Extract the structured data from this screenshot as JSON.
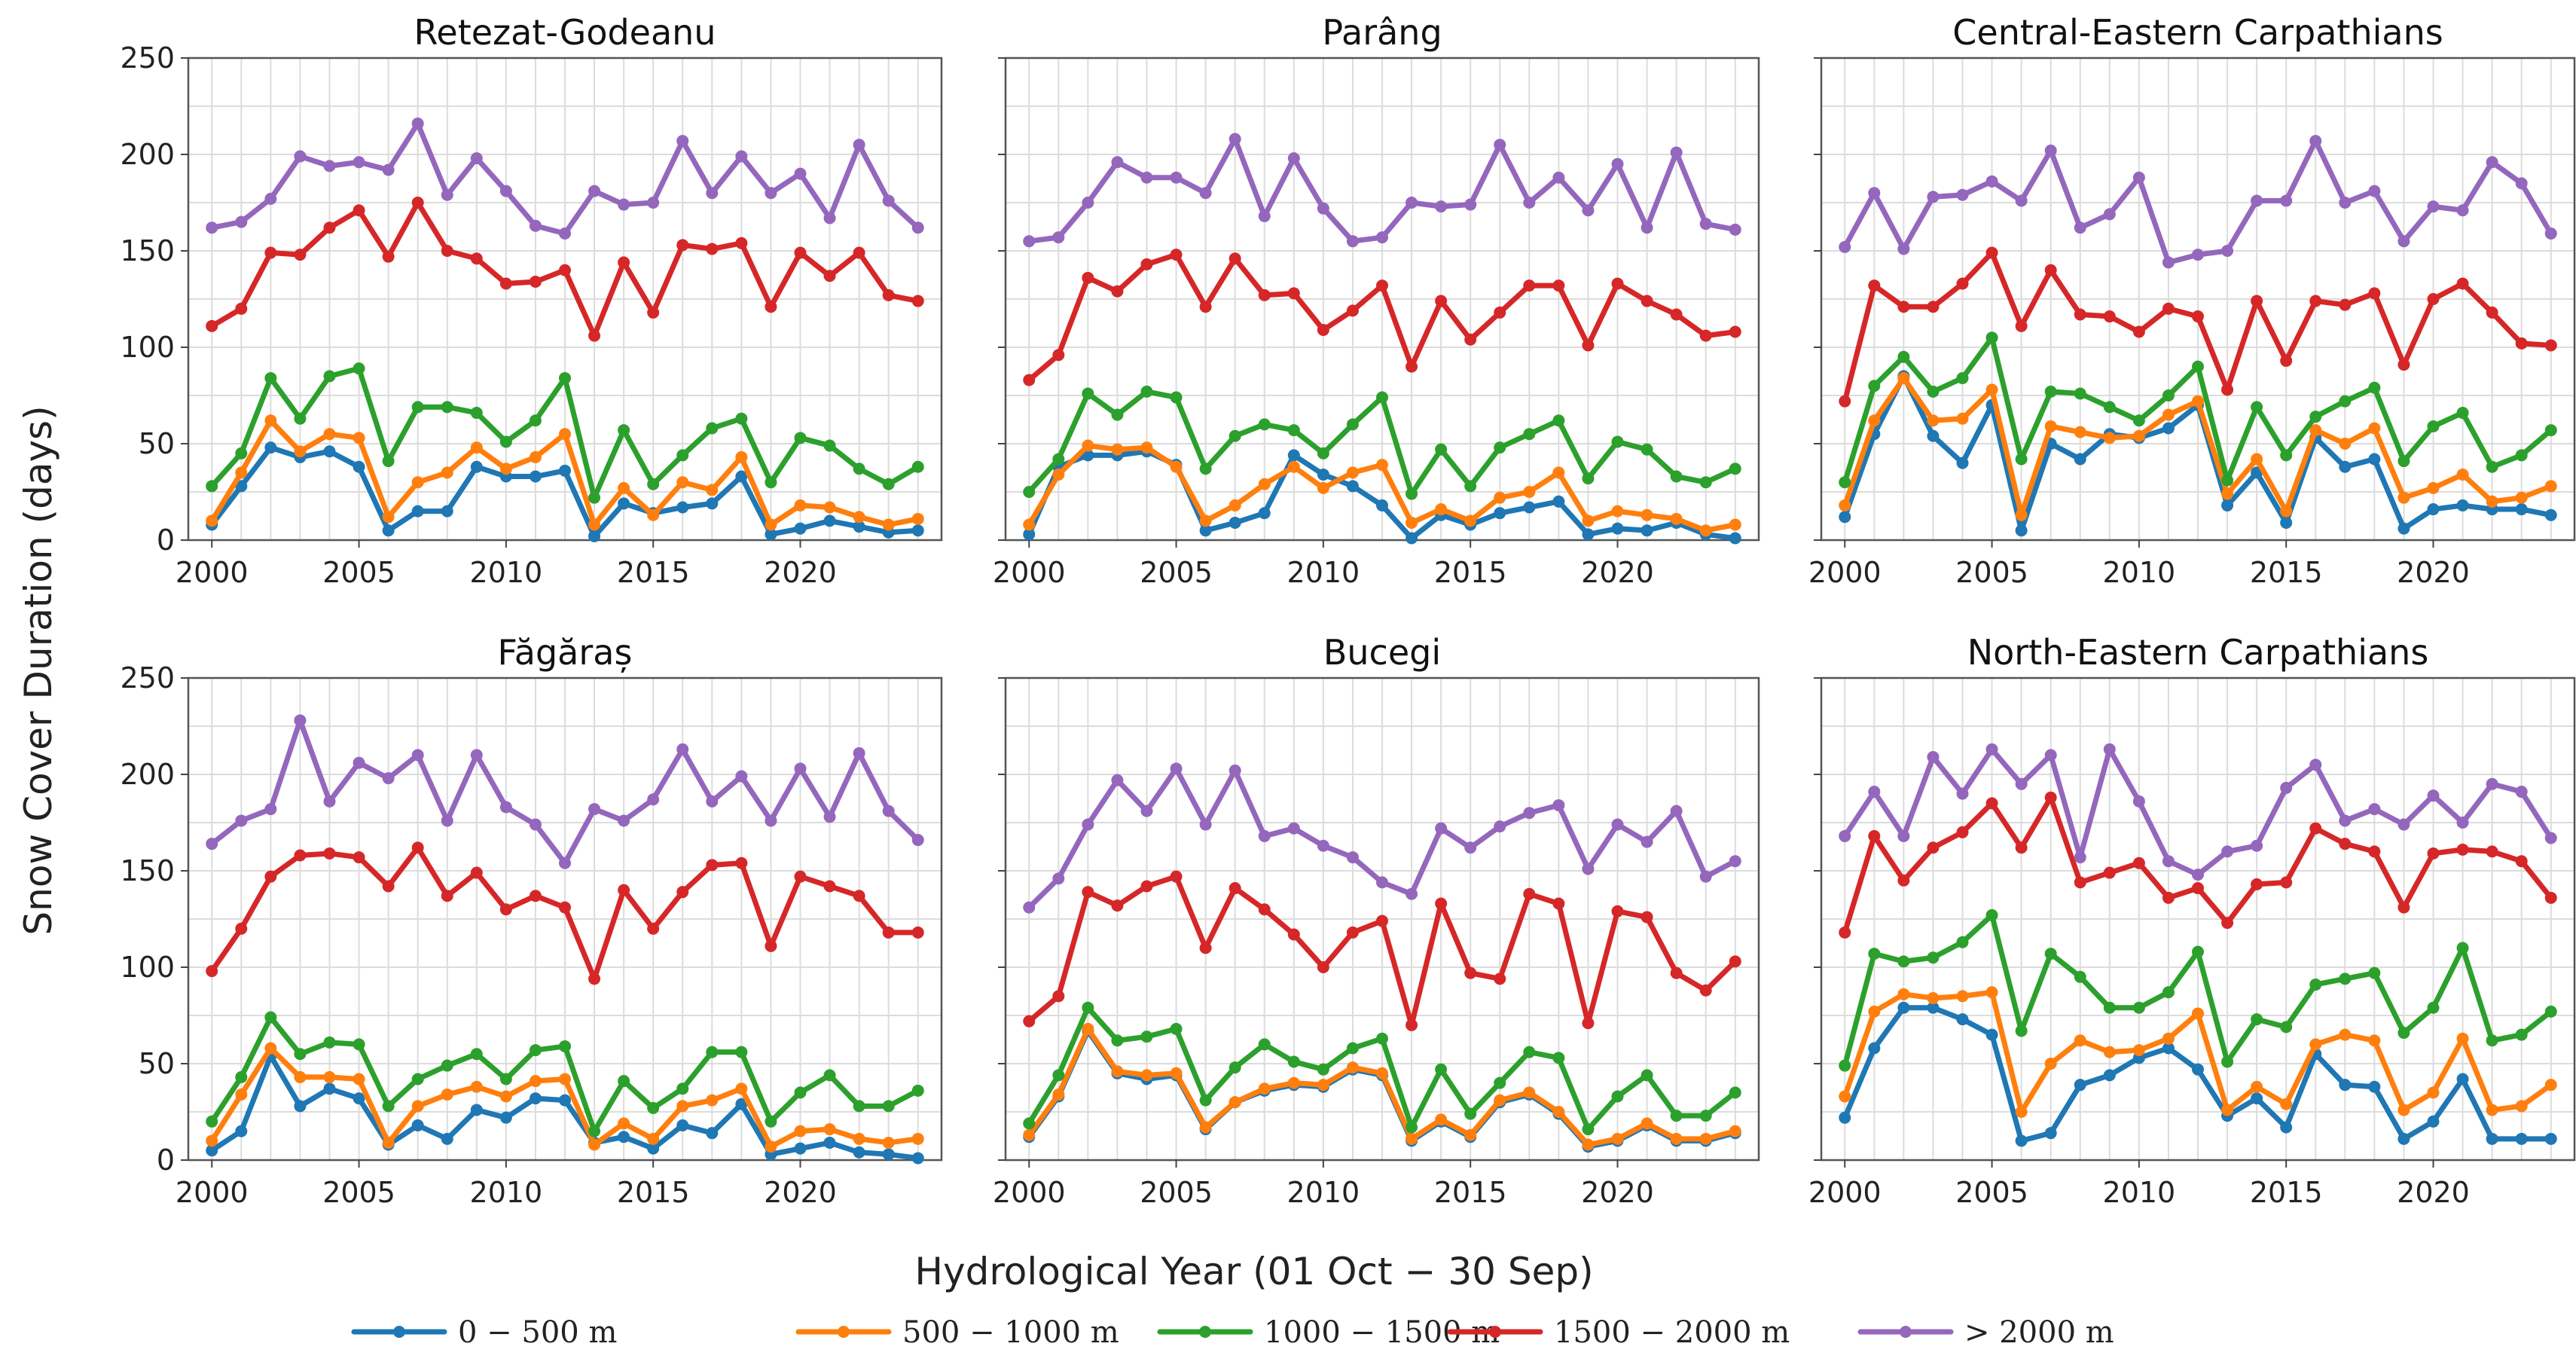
{
  "chart_data": {
    "type": "line",
    "ylabel": "Snow Cover Duration (days)",
    "xlabel": "Hydrological Year (01 Oct − 30 Sep)",
    "ylim": [
      0,
      250
    ],
    "xlim": [
      1999.2,
      2024.8
    ],
    "yticks": [
      0,
      50,
      100,
      150,
      200,
      250
    ],
    "xticks": [
      2000,
      2005,
      2010,
      2015,
      2020
    ],
    "grid": true,
    "legend_position": "bottom",
    "x": [
      2000,
      2001,
      2002,
      2003,
      2004,
      2005,
      2006,
      2007,
      2008,
      2009,
      2010,
      2011,
      2012,
      2013,
      2014,
      2015,
      2016,
      2017,
      2018,
      2019,
      2020,
      2021,
      2022,
      2023,
      2024
    ],
    "series_meta": [
      {
        "name": "0 − 500 m",
        "color": "#1f77b4"
      },
      {
        "name": "500 − 1000 m",
        "color": "#ff7f0e"
      },
      {
        "name": "1000 − 1500 m",
        "color": "#2ca02c"
      },
      {
        "name": "1500 − 2000 m",
        "color": "#d62728"
      },
      {
        "name": "> 2000 m",
        "color": "#9467bd"
      }
    ],
    "panels": [
      {
        "title": "Retezat-Godeanu",
        "series": [
          {
            "name": "0 − 500 m",
            "values": [
              8,
              28,
              48,
              43,
              46,
              38,
              5,
              15,
              15,
              38,
              33,
              33,
              36,
              2,
              19,
              14,
              17,
              19,
              33,
              3,
              6,
              10,
              7,
              4,
              5
            ]
          },
          {
            "name": "500 − 1000 m",
            "values": [
              10,
              35,
              62,
              46,
              55,
              53,
              12,
              30,
              35,
              48,
              37,
              43,
              55,
              8,
              27,
              13,
              30,
              26,
              43,
              8,
              18,
              17,
              12,
              8,
              11
            ]
          },
          {
            "name": "1000 − 1500 m",
            "values": [
              28,
              45,
              84,
              63,
              85,
              89,
              41,
              69,
              69,
              66,
              51,
              62,
              84,
              22,
              57,
              29,
              44,
              58,
              63,
              30,
              53,
              49,
              37,
              29,
              38
            ]
          },
          {
            "name": "1500 − 2000 m",
            "values": [
              111,
              120,
              149,
              148,
              162,
              171,
              147,
              175,
              150,
              146,
              133,
              134,
              140,
              106,
              144,
              118,
              153,
              151,
              154,
              121,
              149,
              137,
              149,
              127,
              124
            ]
          },
          {
            "name": "> 2000 m",
            "values": [
              162,
              165,
              177,
              199,
              194,
              196,
              192,
              216,
              179,
              198,
              181,
              163,
              159,
              181,
              174,
              175,
              207,
              180,
              199,
              180,
              190,
              167,
              205,
              176,
              162
            ]
          }
        ]
      },
      {
        "title": "Parâng",
        "series": [
          {
            "name": "0 − 500 m",
            "values": [
              3,
              38,
              44,
              44,
              46,
              39,
              5,
              9,
              14,
              44,
              34,
              28,
              18,
              1,
              13,
              8,
              14,
              17,
              20,
              3,
              6,
              5,
              9,
              3,
              1
            ]
          },
          {
            "name": "500 − 1000 m",
            "values": [
              8,
              34,
              49,
              47,
              48,
              38,
              10,
              18,
              29,
              38,
              27,
              35,
              39,
              9,
              16,
              10,
              22,
              25,
              35,
              10,
              15,
              13,
              11,
              5,
              8
            ]
          },
          {
            "name": "1000 − 1500 m",
            "values": [
              25,
              42,
              76,
              65,
              77,
              74,
              37,
              54,
              60,
              57,
              45,
              60,
              74,
              24,
              47,
              28,
              48,
              55,
              62,
              32,
              51,
              47,
              33,
              30,
              37
            ]
          },
          {
            "name": "1500 − 2000 m",
            "values": [
              83,
              96,
              136,
              129,
              143,
              148,
              121,
              146,
              127,
              128,
              109,
              119,
              132,
              90,
              124,
              104,
              118,
              132,
              132,
              101,
              133,
              124,
              117,
              106,
              108
            ]
          },
          {
            "name": "> 2000 m",
            "values": [
              155,
              157,
              175,
              196,
              188,
              188,
              180,
              208,
              168,
              198,
              172,
              155,
              157,
              175,
              173,
              174,
              205,
              175,
              188,
              171,
              195,
              162,
              201,
              164,
              161
            ]
          }
        ]
      },
      {
        "title": "Central-Eastern Carpathians",
        "series": [
          {
            "name": "0 − 500 m",
            "values": [
              12,
              55,
              85,
              54,
              40,
              70,
              5,
              50,
              42,
              55,
              53,
              58,
              70,
              18,
              35,
              9,
              53,
              38,
              42,
              6,
              16,
              18,
              16,
              16,
              13
            ]
          },
          {
            "name": "500 − 1000 m",
            "values": [
              18,
              62,
              84,
              62,
              63,
              78,
              13,
              59,
              56,
              53,
              54,
              65,
              72,
              24,
              42,
              15,
              57,
              50,
              58,
              22,
              27,
              34,
              20,
              22,
              28
            ]
          },
          {
            "name": "1000 − 1500 m",
            "values": [
              30,
              80,
              95,
              77,
              84,
              105,
              42,
              77,
              76,
              69,
              62,
              75,
              90,
              31,
              69,
              44,
              64,
              72,
              79,
              41,
              59,
              66,
              38,
              44,
              57
            ]
          },
          {
            "name": "1500 − 2000 m",
            "values": [
              72,
              132,
              121,
              121,
              133,
              149,
              111,
              140,
              117,
              116,
              108,
              120,
              116,
              78,
              124,
              93,
              124,
              122,
              128,
              91,
              125,
              133,
              118,
              102,
              101
            ]
          },
          {
            "name": "> 2000 m",
            "values": [
              152,
              180,
              151,
              178,
              179,
              186,
              176,
              202,
              162,
              169,
              188,
              144,
              148,
              150,
              176,
              176,
              207,
              175,
              181,
              155,
              173,
              171,
              196,
              185,
              159
            ]
          }
        ]
      },
      {
        "title": "Făgăraș",
        "series": [
          {
            "name": "0 − 500 m",
            "values": [
              5,
              15,
              54,
              28,
              37,
              32,
              8,
              18,
              11,
              26,
              22,
              32,
              31,
              9,
              12,
              6,
              18,
              14,
              29,
              3,
              6,
              9,
              4,
              3,
              1
            ]
          },
          {
            "name": "500 − 1000 m",
            "values": [
              10,
              34,
              58,
              43,
              43,
              42,
              9,
              28,
              34,
              38,
              33,
              41,
              42,
              8,
              19,
              11,
              28,
              31,
              37,
              7,
              15,
              16,
              11,
              9,
              11
            ]
          },
          {
            "name": "1000 − 1500 m",
            "values": [
              20,
              43,
              74,
              55,
              61,
              60,
              28,
              42,
              49,
              55,
              42,
              57,
              59,
              15,
              41,
              27,
              37,
              56,
              56,
              20,
              35,
              44,
              28,
              28,
              36
            ]
          },
          {
            "name": "1500 − 2000 m",
            "values": [
              98,
              120,
              147,
              158,
              159,
              157,
              142,
              162,
              137,
              149,
              130,
              137,
              131,
              94,
              140,
              120,
              139,
              153,
              154,
              111,
              147,
              142,
              137,
              118,
              118
            ]
          },
          {
            "name": "> 2000 m",
            "values": [
              164,
              176,
              182,
              228,
              186,
              206,
              198,
              210,
              176,
              210,
              183,
              174,
              154,
              182,
              176,
              187,
              213,
              186,
              199,
              176,
              203,
              178,
              211,
              181,
              166
            ]
          }
        ]
      },
      {
        "title": "Bucegi",
        "series": [
          {
            "name": "0 − 500 m",
            "values": [
              12,
              33,
              67,
              45,
              42,
              44,
              16,
              30,
              36,
              39,
              38,
              47,
              44,
              10,
              20,
              12,
              30,
              34,
              24,
              7,
              10,
              18,
              10,
              10,
              14
            ]
          },
          {
            "name": "500 − 1000 m",
            "values": [
              13,
              34,
              68,
              46,
              44,
              45,
              17,
              30,
              37,
              40,
              39,
              48,
              45,
              11,
              21,
              13,
              31,
              35,
              25,
              8,
              11,
              19,
              11,
              11,
              15
            ]
          },
          {
            "name": "1000 − 1500 m",
            "values": [
              19,
              44,
              79,
              62,
              64,
              68,
              31,
              48,
              60,
              51,
              47,
              58,
              63,
              17,
              47,
              24,
              40,
              56,
              53,
              16,
              33,
              44,
              23,
              23,
              35
            ]
          },
          {
            "name": "1500 − 2000 m",
            "values": [
              72,
              85,
              139,
              132,
              142,
              147,
              110,
              141,
              130,
              117,
              100,
              118,
              124,
              70,
              133,
              97,
              94,
              138,
              133,
              71,
              129,
              126,
              97,
              88,
              103
            ]
          },
          {
            "name": "> 2000 m",
            "values": [
              131,
              146,
              174,
              197,
              181,
              203,
              174,
              202,
              168,
              172,
              163,
              157,
              144,
              138,
              172,
              162,
              173,
              180,
              184,
              151,
              174,
              165,
              181,
              147,
              155
            ]
          }
        ]
      },
      {
        "title": "North-Eastern Carpathians",
        "series": [
          {
            "name": "0 − 500 m",
            "values": [
              22,
              58,
              79,
              79,
              73,
              65,
              10,
              14,
              39,
              44,
              53,
              58,
              47,
              23,
              32,
              17,
              55,
              39,
              38,
              11,
              20,
              42,
              11,
              11,
              11
            ]
          },
          {
            "name": "500 − 1000 m",
            "values": [
              33,
              77,
              86,
              84,
              85,
              87,
              25,
              50,
              62,
              56,
              57,
              63,
              76,
              26,
              38,
              29,
              60,
              65,
              62,
              26,
              35,
              63,
              26,
              28,
              39
            ]
          },
          {
            "name": "1000 − 1500 m",
            "values": [
              49,
              107,
              103,
              105,
              113,
              127,
              67,
              107,
              95,
              79,
              79,
              87,
              108,
              51,
              73,
              69,
              91,
              94,
              97,
              66,
              79,
              110,
              62,
              65,
              77
            ]
          },
          {
            "name": "1500 − 2000 m",
            "values": [
              118,
              168,
              145,
              162,
              170,
              185,
              162,
              188,
              144,
              149,
              154,
              136,
              141,
              123,
              143,
              144,
              172,
              164,
              160,
              131,
              159,
              161,
              160,
              155,
              136
            ]
          },
          {
            "name": "> 2000 m",
            "values": [
              168,
              191,
              168,
              209,
              190,
              213,
              195,
              210,
              157,
              213,
              186,
              155,
              148,
              160,
              163,
              193,
              205,
              176,
              182,
              174,
              189,
              175,
              195,
              191,
              167
            ]
          }
        ]
      }
    ]
  }
}
